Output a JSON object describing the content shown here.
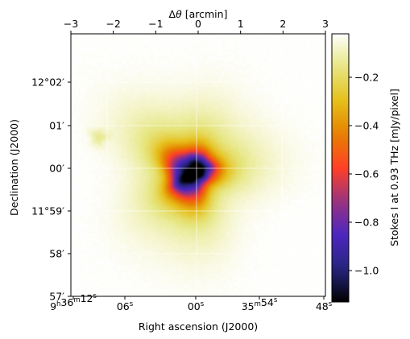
{
  "chart_data": {
    "type": "heatmap",
    "colormap": "CMRmap",
    "xlabel": "Right ascension (J2000)",
    "ylabel": "Declination (J2000)",
    "top_xlabel_prefix": "Δ",
    "top_xlabel_var": "θ",
    "top_xlabel_unit": " [arcmin]",
    "top_xlim": [
      -3,
      3
    ],
    "top_ticks": [
      "−3",
      "−2",
      "−1",
      "0",
      "1",
      "2",
      "3"
    ],
    "ra_ticks": [
      {
        "base": "9",
        "sup1": "h",
        "mid": "36",
        "sup2": "m",
        "tail": "12",
        "sup3": "s"
      },
      {
        "base": "06",
        "sup1": "s"
      },
      {
        "base": "00",
        "sup1": "s"
      },
      {
        "base": "35",
        "sup1": "m",
        "mid": "54",
        "sup2": "s"
      },
      {
        "base": "48",
        "sup1": "s"
      }
    ],
    "dec_ticks": [
      "12°02′",
      "01′",
      "00′",
      "11°59′",
      "58′",
      "57′"
    ],
    "colorbar": {
      "label": "Stokes I at 0.93 THz [mJy/pixel]",
      "ticks": [
        "−1.0",
        "−0.8",
        "−0.6",
        "−0.4",
        "−0.2"
      ],
      "tick_values": [
        -1.0,
        -0.8,
        -0.6,
        -0.4,
        -0.2
      ],
      "vmin": -1.13,
      "vmax": -0.02
    },
    "image": {
      "center_offset_arcmin": [
        -0.18,
        -0.2
      ],
      "core_value": -1.13,
      "background_value": -0.02,
      "blobs": [
        {
          "dx": -0.18,
          "dy": -0.2,
          "sx": 0.55,
          "sy": 0.62,
          "amp": -0.75
        },
        {
          "dx": 0.05,
          "dy": -0.05,
          "sx": 0.28,
          "sy": 0.32,
          "amp": -0.35
        },
        {
          "dx": -0.4,
          "dy": -0.35,
          "sx": 0.28,
          "sy": 0.3,
          "amp": -0.25
        },
        {
          "dx": -0.2,
          "dy": -0.1,
          "sx": 1.4,
          "sy": 1.5,
          "amp": -0.22
        },
        {
          "dx": -2.35,
          "dy": 0.65,
          "sx": 0.2,
          "sy": 0.2,
          "amp": -0.1
        }
      ]
    }
  }
}
